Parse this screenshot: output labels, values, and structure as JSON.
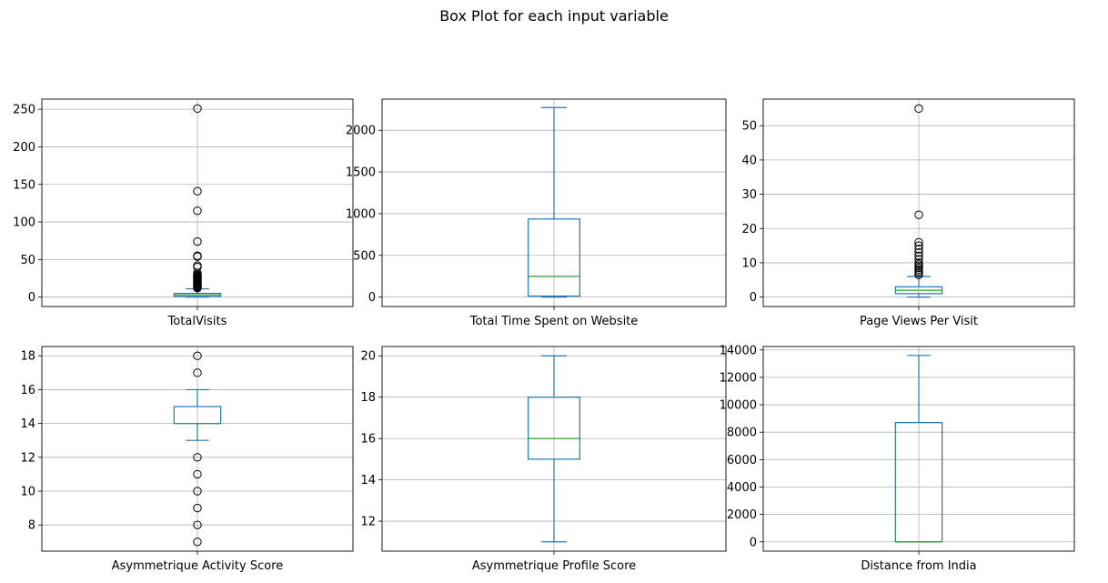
{
  "figure": {
    "title": "Box Plot for each input variable"
  },
  "colors": {
    "box": "#1f77b4",
    "median": "#2ca02c",
    "grid": "#b0b0b0",
    "outlier": "#000000"
  },
  "chart_data": [
    {
      "type": "box",
      "xlabel": "TotalVisits",
      "ylim": [
        -12.5,
        263.5
      ],
      "yticks": [
        0,
        50,
        100,
        150,
        200,
        250
      ],
      "ytick_labels": [
        "0",
        "50",
        "100",
        "150",
        "200",
        "250"
      ],
      "grid": true,
      "min": 0,
      "q1": 1,
      "median": 3,
      "q3": 5,
      "max": 11,
      "outliers": [
        12,
        13,
        14,
        15,
        16,
        17,
        18,
        19,
        20,
        21,
        22,
        23,
        24,
        25,
        26,
        27,
        28,
        29,
        30,
        32,
        40,
        42,
        54,
        55,
        74,
        115,
        141,
        251
      ]
    },
    {
      "type": "box",
      "xlabel": "Total Time Spent on Website",
      "ylim": [
        -113,
        2373
      ],
      "yticks": [
        0,
        500,
        1000,
        1500,
        2000
      ],
      "ytick_labels": [
        "0",
        "500",
        "1000",
        "1500",
        "2000"
      ],
      "grid": true,
      "min": 0,
      "q1": 12,
      "median": 248,
      "q3": 936,
      "max": 2272,
      "outliers": []
    },
    {
      "type": "box",
      "xlabel": "Page Views Per Visit",
      "ylim": [
        -2.75,
        57.75
      ],
      "yticks": [
        0,
        10,
        20,
        30,
        40,
        50
      ],
      "ytick_labels": [
        "0",
        "10",
        "20",
        "30",
        "40",
        "50"
      ],
      "grid": true,
      "min": 0,
      "q1": 1,
      "median": 2,
      "q3": 3,
      "max": 6,
      "outliers": [
        6.5,
        7,
        7.5,
        8,
        8.5,
        9,
        9.5,
        10,
        11,
        12,
        13,
        14,
        15,
        16,
        24,
        55
      ]
    },
    {
      "type": "box",
      "xlabel": "Asymmetrique Activity Score",
      "ylim": [
        6.45,
        18.55
      ],
      "yticks": [
        8,
        10,
        12,
        14,
        16,
        18
      ],
      "ytick_labels": [
        "8",
        "10",
        "12",
        "14",
        "16",
        "18"
      ],
      "grid": true,
      "min": 13,
      "q1": 14,
      "median": 14,
      "q3": 15,
      "max": 16,
      "outliers": [
        7,
        8,
        9,
        10,
        11,
        12,
        17,
        18
      ]
    },
    {
      "type": "box",
      "xlabel": "Asymmetrique Profile Score",
      "ylim": [
        10.55,
        20.45
      ],
      "yticks": [
        12,
        14,
        16,
        18,
        20
      ],
      "ytick_labels": [
        "12",
        "14",
        "16",
        "18",
        "20"
      ],
      "grid": true,
      "min": 11,
      "q1": 15,
      "median": 16,
      "q3": 18,
      "max": 20,
      "outliers": []
    },
    {
      "type": "box",
      "xlabel": "Distance from India",
      "ylim": [
        -680,
        14250
      ],
      "yticks": [
        0,
        2000,
        4000,
        6000,
        8000,
        10000,
        12000,
        14000
      ],
      "ytick_labels": [
        "0",
        "2000",
        "4000",
        "6000",
        "8000",
        "10000",
        "12000",
        "14000"
      ],
      "grid": true,
      "min": 0,
      "q1": 0,
      "median": 0,
      "q3": 8700,
      "max": 13600,
      "outliers": []
    }
  ]
}
